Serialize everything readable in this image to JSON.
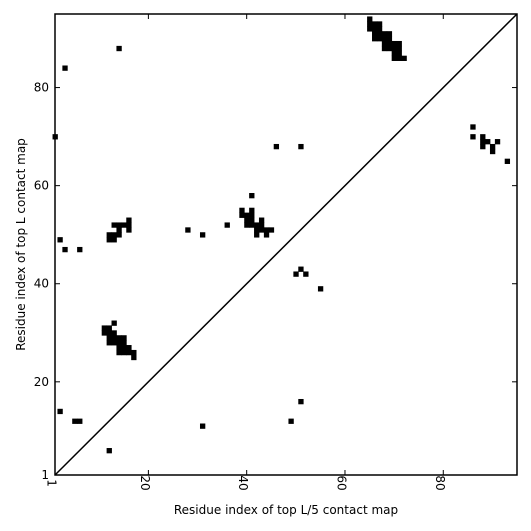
{
  "chart_data": {
    "type": "heatmap",
    "xlabel": "Residue index of top L/5 contact map",
    "ylabel": "Residue index of top L contact map",
    "xlim": [
      1,
      95
    ],
    "ylim": [
      1,
      95
    ],
    "xticks": [
      1,
      20,
      40,
      60,
      80
    ],
    "yticks": [
      1,
      20,
      40,
      60,
      80
    ],
    "diagonal": true,
    "colors": {
      "cell": "#000000",
      "axis": "#000000",
      "background": "#ffffff"
    },
    "cells": [
      [
        1,
        70
      ],
      [
        3,
        84
      ],
      [
        14,
        88
      ],
      [
        2,
        49
      ],
      [
        3,
        47
      ],
      [
        6,
        47
      ],
      [
        65,
        94
      ],
      [
        65,
        93
      ],
      [
        66,
        93
      ],
      [
        67,
        93
      ],
      [
        65,
        92
      ],
      [
        66,
        92
      ],
      [
        67,
        92
      ],
      [
        66,
        91
      ],
      [
        67,
        91
      ],
      [
        68,
        91
      ],
      [
        69,
        91
      ],
      [
        66,
        90
      ],
      [
        67,
        90
      ],
      [
        68,
        90
      ],
      [
        69,
        90
      ],
      [
        68,
        89
      ],
      [
        69,
        89
      ],
      [
        70,
        89
      ],
      [
        71,
        89
      ],
      [
        68,
        88
      ],
      [
        69,
        88
      ],
      [
        70,
        88
      ],
      [
        71,
        88
      ],
      [
        70,
        87
      ],
      [
        71,
        87
      ],
      [
        70,
        86
      ],
      [
        71,
        86
      ],
      [
        72,
        86
      ],
      [
        12,
        50
      ],
      [
        13,
        50
      ],
      [
        12,
        49
      ],
      [
        13,
        49
      ],
      [
        14,
        50
      ],
      [
        14,
        51
      ],
      [
        13,
        52
      ],
      [
        14,
        52
      ],
      [
        15,
        52
      ],
      [
        16,
        52
      ],
      [
        16,
        53
      ],
      [
        16,
        51
      ],
      [
        28,
        51
      ],
      [
        31,
        50
      ],
      [
        36,
        52
      ],
      [
        41,
        58
      ],
      [
        39,
        55
      ],
      [
        41,
        55
      ],
      [
        39,
        54
      ],
      [
        40,
        54
      ],
      [
        41,
        54
      ],
      [
        40,
        53
      ],
      [
        41,
        53
      ],
      [
        43,
        53
      ],
      [
        40,
        52
      ],
      [
        41,
        52
      ],
      [
        42,
        52
      ],
      [
        43,
        52
      ],
      [
        42,
        51
      ],
      [
        43,
        51
      ],
      [
        44,
        51
      ],
      [
        45,
        51
      ],
      [
        42,
        50
      ],
      [
        44,
        50
      ],
      [
        46,
        68
      ],
      [
        51,
        68
      ],
      [
        50,
        42
      ],
      [
        51,
        43
      ],
      [
        52,
        42
      ],
      [
        55,
        39
      ],
      [
        86,
        72
      ],
      [
        86,
        70
      ],
      [
        88,
        70
      ],
      [
        88,
        69
      ],
      [
        89,
        69
      ],
      [
        91,
        69
      ],
      [
        88,
        68
      ],
      [
        90,
        68
      ],
      [
        90,
        67
      ],
      [
        93,
        65
      ],
      [
        11,
        31
      ],
      [
        12,
        31
      ],
      [
        11,
        30
      ],
      [
        12,
        30
      ],
      [
        13,
        30
      ],
      [
        13,
        32
      ],
      [
        12,
        29
      ],
      [
        13,
        29
      ],
      [
        14,
        29
      ],
      [
        15,
        29
      ],
      [
        12,
        28
      ],
      [
        13,
        28
      ],
      [
        14,
        28
      ],
      [
        15,
        28
      ],
      [
        14,
        27
      ],
      [
        15,
        27
      ],
      [
        14,
        26
      ],
      [
        15,
        26
      ],
      [
        16,
        27
      ],
      [
        16,
        26
      ],
      [
        17,
        26
      ],
      [
        17,
        25
      ],
      [
        2,
        14
      ],
      [
        5,
        12
      ],
      [
        6,
        12
      ],
      [
        31,
        11
      ],
      [
        51,
        16
      ],
      [
        49,
        12
      ],
      [
        12,
        6
      ]
    ]
  }
}
